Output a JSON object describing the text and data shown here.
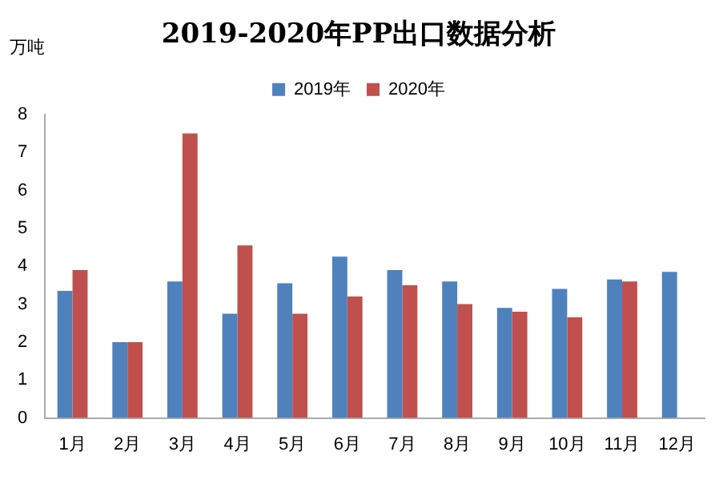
{
  "chart_data": {
    "type": "bar",
    "title": "2019-2020年PP出口数据分析",
    "ylabel": "万吨",
    "categories": [
      "1月",
      "2月",
      "3月",
      "4月",
      "5月",
      "6月",
      "7月",
      "8月",
      "9月",
      "10月",
      "11月",
      "12月"
    ],
    "series": [
      {
        "name": "2019年",
        "color": "#4f81bd",
        "values": [
          3.35,
          2.0,
          3.6,
          2.75,
          3.55,
          4.25,
          3.9,
          3.6,
          2.9,
          3.4,
          3.65,
          3.85
        ]
      },
      {
        "name": "2020年",
        "color": "#c0504d",
        "values": [
          3.9,
          2.0,
          7.5,
          4.55,
          2.75,
          3.2,
          3.5,
          3.0,
          2.8,
          2.65,
          3.6,
          null
        ]
      }
    ],
    "ylim": [
      0,
      8
    ],
    "yticks": [
      0,
      1,
      2,
      3,
      4,
      5,
      6,
      7,
      8
    ],
    "grid": false,
    "legend": "top"
  }
}
